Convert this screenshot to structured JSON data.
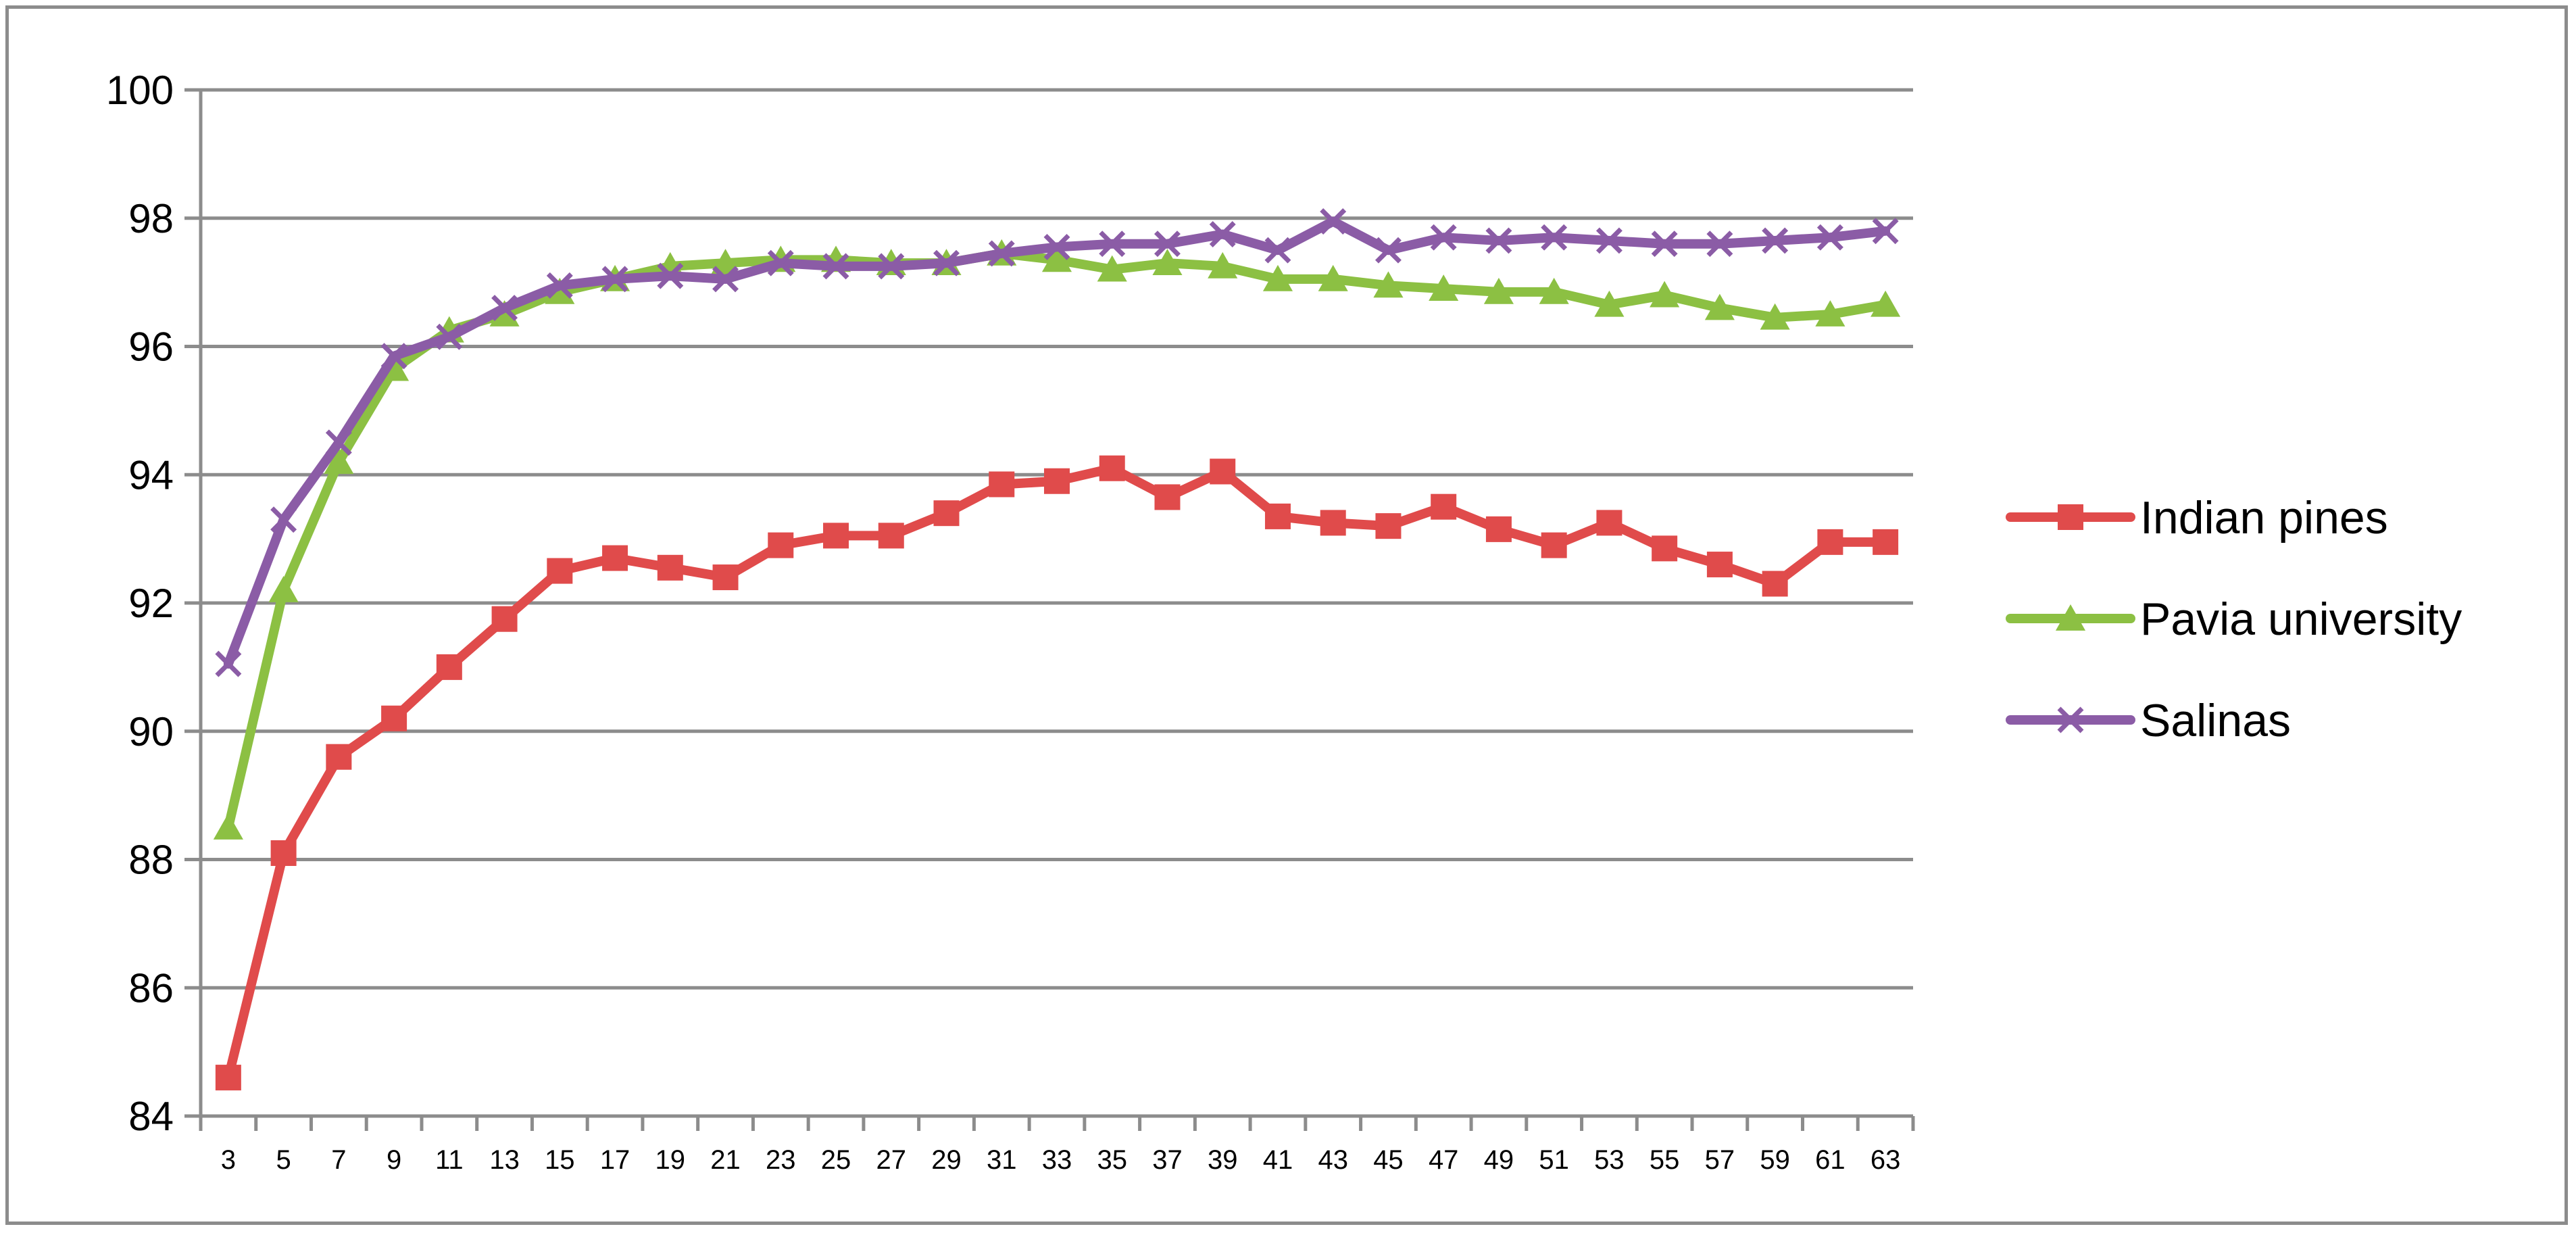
{
  "chart_data": {
    "type": "line",
    "title": "",
    "xlabel": "",
    "ylabel": "",
    "x": [
      3,
      5,
      7,
      9,
      11,
      13,
      15,
      17,
      19,
      21,
      23,
      25,
      27,
      29,
      31,
      33,
      35,
      37,
      39,
      41,
      43,
      45,
      47,
      49,
      51,
      53,
      55,
      57,
      59,
      61,
      63
    ],
    "ylim": [
      84,
      100
    ],
    "yticks": [
      84,
      86,
      88,
      90,
      92,
      94,
      96,
      98,
      100
    ],
    "grid": true,
    "legend_position": "right",
    "series": [
      {
        "name": "Indian pines",
        "color": "#e04b4b",
        "marker": "square",
        "values": [
          84.6,
          88.1,
          89.6,
          90.2,
          91.0,
          91.75,
          92.5,
          92.7,
          92.55,
          92.4,
          92.9,
          93.05,
          93.05,
          93.4,
          93.85,
          93.9,
          94.1,
          93.65,
          94.05,
          93.35,
          93.25,
          93.2,
          93.5,
          93.15,
          92.9,
          93.25,
          92.85,
          92.6,
          92.3,
          92.95,
          92.95
        ]
      },
      {
        "name": "Pavia university",
        "color": "#8cc043",
        "marker": "triangle",
        "values": [
          88.5,
          92.2,
          94.2,
          95.65,
          96.25,
          96.5,
          96.85,
          97.05,
          97.25,
          97.3,
          97.35,
          97.35,
          97.3,
          97.3,
          97.45,
          97.35,
          97.2,
          97.3,
          97.25,
          97.05,
          97.05,
          96.95,
          96.9,
          96.85,
          96.85,
          96.65,
          96.8,
          96.6,
          96.45,
          96.5,
          96.65
        ]
      },
      {
        "name": "Salinas",
        "color": "#8b5ca6",
        "marker": "x",
        "values": [
          91.05,
          93.3,
          94.5,
          95.85,
          96.15,
          96.6,
          96.95,
          97.05,
          97.1,
          97.05,
          97.3,
          97.25,
          97.25,
          97.3,
          97.45,
          97.55,
          97.6,
          97.6,
          97.75,
          97.5,
          97.95,
          97.5,
          97.7,
          97.65,
          97.7,
          97.65,
          97.6,
          97.6,
          97.65,
          97.7,
          97.8
        ]
      }
    ]
  }
}
